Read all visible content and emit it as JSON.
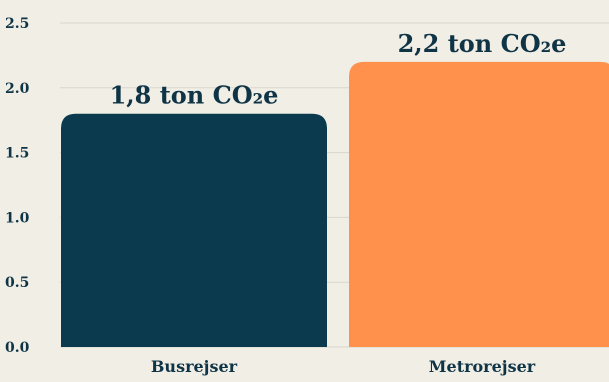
{
  "chart_data": {
    "type": "bar",
    "categories": [
      "Busrejser",
      "Metrorejser"
    ],
    "values": [
      1.8,
      2.2
    ],
    "data_labels": [
      "1,8 ton CO₂e",
      "2,2 ton CO₂e"
    ],
    "yticks": [
      "0.0",
      "0.5",
      "1.0",
      "1.5",
      "2.0",
      "2.5"
    ],
    "ylim": [
      0,
      2.5
    ],
    "grid": true,
    "bar_colors": [
      "#0b3a4f",
      "#ff914d"
    ],
    "text_color": "#0f3446",
    "background": "#f1eee6"
  }
}
